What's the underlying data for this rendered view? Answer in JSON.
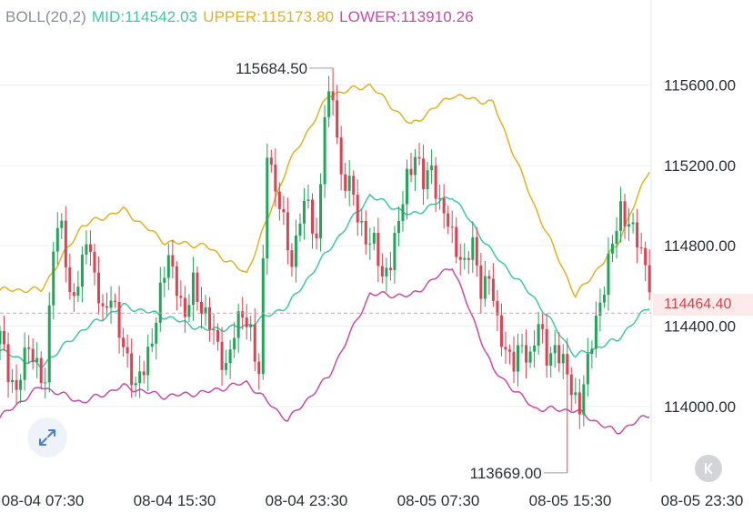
{
  "header": {
    "boll_label": "BOLL(20,2)",
    "mid_label": "MID:114542.03",
    "upper_label": "UPPER:115173.80",
    "lower_label": "LOWER:113910.26"
  },
  "current_price_label": "114464.40",
  "colors": {
    "up": "#22a55b",
    "down": "#e04152",
    "mid": "#3cc9a6",
    "upper": "#e3b21f",
    "lower": "#cc4aa8",
    "boll_label": "#8a8f98",
    "axis_text": "#2b2f36",
    "grid": "#eeeff2",
    "price_tag_bg": "#fdeaea",
    "price_tag_text": "#e0404a"
  },
  "icons": {
    "expand": "expand-diagonal-icon",
    "back": "back-arrow-icon"
  },
  "chart_data": {
    "type": "candlestick",
    "indicator": "BOLL(20,2)",
    "ylim": [
      113560,
      115960
    ],
    "y_ticks": [
      115600,
      115200,
      114800,
      114400,
      114000
    ],
    "y_tick_labels": [
      "115600.00",
      "115200.00",
      "114800.00",
      "114400.00",
      "114000.00"
    ],
    "x_tick_labels": [
      "08-04 07:30",
      "08-04 15:30",
      "08-04 23:30",
      "08-05 07:30",
      "08-05 15:30",
      "08-05 23:30"
    ],
    "current_price": 114464.4,
    "high_label": "115684.50",
    "high_value": 115684.5,
    "low_label": "113669.00",
    "low_value": 113669.0,
    "grid": true,
    "close_anchors": [
      [
        0,
        114350
      ],
      [
        2,
        114180
      ],
      [
        4,
        114080
      ],
      [
        7,
        114300
      ],
      [
        9,
        114220
      ],
      [
        11,
        114090
      ],
      [
        13,
        114820
      ],
      [
        15,
        114940
      ],
      [
        17,
        114500
      ],
      [
        19,
        114620
      ],
      [
        21,
        114860
      ],
      [
        23,
        114620
      ],
      [
        25,
        114480
      ],
      [
        27,
        114560
      ],
      [
        29,
        114350
      ],
      [
        31,
        114250
      ],
      [
        33,
        114090
      ],
      [
        35,
        114180
      ],
      [
        37,
        114350
      ],
      [
        39,
        114560
      ],
      [
        41,
        114740
      ],
      [
        43,
        114620
      ],
      [
        45,
        114420
      ],
      [
        47,
        114620
      ],
      [
        49,
        114500
      ],
      [
        51,
        114400
      ],
      [
        53,
        114300
      ],
      [
        55,
        114200
      ],
      [
        57,
        114350
      ],
      [
        59,
        114480
      ],
      [
        61,
        114380
      ],
      [
        63,
        114120
      ],
      [
        65,
        115300
      ],
      [
        67,
        115080
      ],
      [
        69,
        114900
      ],
      [
        71,
        114720
      ],
      [
        73,
        114950
      ],
      [
        75,
        115000
      ],
      [
        77,
        114820
      ],
      [
        79,
        115450
      ],
      [
        81,
        115550
      ],
      [
        83,
        115150
      ],
      [
        85,
        115100
      ],
      [
        87,
        114950
      ],
      [
        89,
        114850
      ],
      [
        91,
        114800
      ],
      [
        93,
        114640
      ],
      [
        95,
        114740
      ],
      [
        97,
        114900
      ],
      [
        99,
        115150
      ],
      [
        101,
        115260
      ],
      [
        103,
        115100
      ],
      [
        105,
        115200
      ],
      [
        107,
        115000
      ],
      [
        109,
        114900
      ],
      [
        111,
        114800
      ],
      [
        113,
        114700
      ],
      [
        115,
        114800
      ],
      [
        117,
        114600
      ],
      [
        119,
        114640
      ],
      [
        121,
        114400
      ],
      [
        123,
        114300
      ],
      [
        125,
        114200
      ],
      [
        127,
        114300
      ],
      [
        129,
        114250
      ],
      [
        131,
        114400
      ],
      [
        133,
        114250
      ],
      [
        135,
        114300
      ],
      [
        137,
        114200
      ],
      [
        139,
        114100
      ],
      [
        141,
        114000
      ],
      [
        143,
        114200
      ],
      [
        145,
        114450
      ],
      [
        147,
        114600
      ],
      [
        149,
        114800
      ],
      [
        151,
        115000
      ],
      [
        153,
        114900
      ],
      [
        155,
        114820
      ],
      [
        157,
        114720
      ],
      [
        158,
        114620
      ]
    ],
    "mid_series": [
      [
        -3,
        114300
      ],
      [
        10,
        114200
      ],
      [
        20,
        114380
      ],
      [
        30,
        114500
      ],
      [
        40,
        114450
      ],
      [
        50,
        114380
      ],
      [
        60,
        114400
      ],
      [
        70,
        114500
      ],
      [
        80,
        114780
      ],
      [
        90,
        115050
      ],
      [
        100,
        114950
      ],
      [
        110,
        115050
      ],
      [
        120,
        114760
      ],
      [
        130,
        114540
      ],
      [
        140,
        114250
      ],
      [
        150,
        114330
      ],
      [
        158,
        114500
      ]
    ],
    "upper_series": [
      [
        -3,
        114580
      ],
      [
        10,
        114580
      ],
      [
        20,
        114900
      ],
      [
        30,
        114980
      ],
      [
        40,
        114820
      ],
      [
        50,
        114800
      ],
      [
        60,
        114660
      ],
      [
        70,
        115200
      ],
      [
        80,
        115550
      ],
      [
        90,
        115600
      ],
      [
        100,
        115400
      ],
      [
        110,
        115550
      ],
      [
        120,
        115510
      ],
      [
        130,
        115000
      ],
      [
        140,
        114550
      ],
      [
        150,
        114800
      ],
      [
        158,
        115180
      ]
    ],
    "lower_series": [
      [
        -3,
        113900
      ],
      [
        10,
        114100
      ],
      [
        20,
        114020
      ],
      [
        30,
        114100
      ],
      [
        40,
        114050
      ],
      [
        50,
        114070
      ],
      [
        60,
        114120
      ],
      [
        70,
        113930
      ],
      [
        80,
        114150
      ],
      [
        90,
        114560
      ],
      [
        100,
        114550
      ],
      [
        110,
        114700
      ],
      [
        120,
        114180
      ],
      [
        130,
        113990
      ],
      [
        140,
        113980
      ],
      [
        150,
        113870
      ],
      [
        158,
        113960
      ]
    ]
  }
}
